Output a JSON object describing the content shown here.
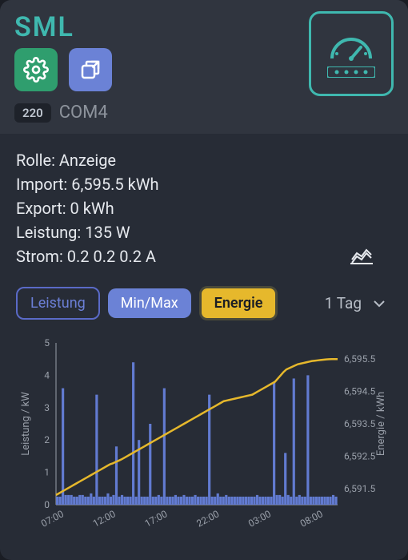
{
  "header": {
    "title": "SML",
    "badge": "220",
    "port": "COM4"
  },
  "info": {
    "rolle_label": "Rolle:",
    "rolle_value": "Anzeige",
    "import_label": "Import:",
    "import_value": "6,595.5 kWh",
    "export_label": "Export:",
    "export_value": "0 kWh",
    "leistung_label": "Leistung:",
    "leistung_value": "135 W",
    "strom_label": "Strom:",
    "strom_value": "0.2 0.2 0.2 A"
  },
  "segments": {
    "leistung": "Leistung",
    "minmax": "Min/Max",
    "energie": "Energie",
    "range": "1 Tag"
  },
  "colors": {
    "accent": "#3fb8af",
    "btn_green": "#2f9e6e",
    "btn_blue": "#6b82d6",
    "seg_yellow": "#e6b82c",
    "bar": "#627bd1",
    "line": "#e6b82c",
    "axis": "#9aa0aa",
    "grid": "#3a3f4a",
    "bg": "#272c36"
  },
  "chart": {
    "y_left_label": "Leistung / kW",
    "y_right_label": "Energie / kWh",
    "y_left_ticks": [
      0,
      1,
      2,
      3,
      4,
      5
    ],
    "y_right_ticks": [
      "6,591.5",
      "6,592.5",
      "6,593.5",
      "6,594.5",
      "6,595.5"
    ],
    "x_ticks": [
      "07:00",
      "12:00",
      "17:00",
      "22:00",
      "03:00",
      "08:00"
    ],
    "y_left_max": 5,
    "y_right_min": 6591.0,
    "y_right_max": 6596.0,
    "label_fontsize": 13,
    "tick_fontsize": 12,
    "bars": [
      0.25,
      0.25,
      3.6,
      0.3,
      0.3,
      0.3,
      0.25,
      0.25,
      0.3,
      0.3,
      0.25,
      0.25,
      0.35,
      0.25,
      3.4,
      0.25,
      0.25,
      0.25,
      0.35,
      0.25,
      0.3,
      1.8,
      0.25,
      0.3,
      0.25,
      0.25,
      0.25,
      4.4,
      0.25,
      2.0,
      0.25,
      0.25,
      0.25,
      2.5,
      0.25,
      0.25,
      0.3,
      0.25,
      3.6,
      0.25,
      0.25,
      0.25,
      0.3,
      0.25,
      0.25,
      0.3,
      0.25,
      0.25,
      0.25,
      0.3,
      0.25,
      0.25,
      0.25,
      0.25,
      3.4,
      0.25,
      0.25,
      0.35,
      0.25,
      0.25,
      0.3,
      0.25,
      0.25,
      0.25,
      0.25,
      0.25,
      0.25,
      0.25,
      0.25,
      0.25,
      0.25,
      0.3,
      0.25,
      0.25,
      0.25,
      0.25,
      0.25,
      3.8,
      0.3,
      0.3,
      0.25,
      1.6,
      0.3,
      0.25,
      3.9,
      0.25,
      0.3,
      0.25,
      0.25,
      4.0,
      0.25,
      0.25,
      0.25,
      0.25,
      0.25,
      0.25,
      0.25,
      0.25,
      0.3,
      0.25
    ],
    "energy": [
      6591.3,
      6591.35,
      6591.4,
      6591.45,
      6591.5,
      6591.55,
      6591.6,
      6591.65,
      6591.7,
      6591.75,
      6591.8,
      6591.85,
      6591.9,
      6591.95,
      6592.0,
      6592.05,
      6592.1,
      6592.15,
      6592.2,
      6592.25,
      6592.28,
      6592.32,
      6592.36,
      6592.4,
      6592.45,
      6592.5,
      6592.55,
      6592.6,
      6592.65,
      6592.7,
      6592.75,
      6592.8,
      6592.85,
      6592.9,
      6592.95,
      6593.0,
      6593.05,
      6593.1,
      6593.15,
      6593.2,
      6593.25,
      6593.3,
      6593.35,
      6593.4,
      6593.45,
      6593.5,
      6593.55,
      6593.6,
      6593.65,
      6593.7,
      6593.75,
      6593.8,
      6593.85,
      6593.9,
      6593.95,
      6594.0,
      6594.05,
      6594.1,
      6594.15,
      6594.2,
      6594.22,
      6594.24,
      6594.26,
      6594.28,
      6594.3,
      6594.32,
      6594.34,
      6594.36,
      6594.38,
      6594.4,
      6594.45,
      6594.5,
      6594.55,
      6594.6,
      6594.65,
      6594.7,
      6594.75,
      6594.8,
      6594.9,
      6595.0,
      6595.1,
      6595.18,
      6595.22,
      6595.26,
      6595.3,
      6595.34,
      6595.36,
      6595.38,
      6595.4,
      6595.42,
      6595.44,
      6595.45,
      6595.46,
      6595.47,
      6595.48,
      6595.49,
      6595.495,
      6595.498,
      6595.499,
      6595.5
    ]
  }
}
